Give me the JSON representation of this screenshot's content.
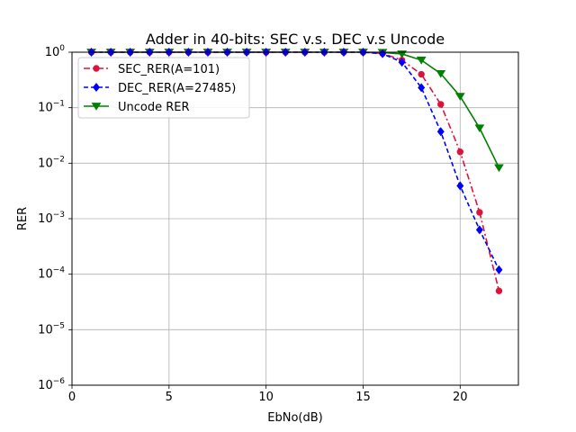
{
  "chart_data": {
    "type": "line",
    "title": "Adder in 40-bits: SEC v.s. DEC v.s Uncode",
    "xlabel": "EbNo(dB)",
    "ylabel": "RER",
    "xlim": [
      0,
      23
    ],
    "ylim": [
      1e-06,
      1
    ],
    "yscale": "log",
    "grid": true,
    "legend_position": "top-left",
    "x_ticks": [
      0,
      5,
      10,
      15,
      20
    ],
    "y_ticks": [
      {
        "value": 1e-06,
        "base": "10",
        "exp": "−6"
      },
      {
        "value": 1e-05,
        "base": "10",
        "exp": "−5"
      },
      {
        "value": 0.0001,
        "base": "10",
        "exp": "−4"
      },
      {
        "value": 0.001,
        "base": "10",
        "exp": "−3"
      },
      {
        "value": 0.01,
        "base": "10",
        "exp": "−2"
      },
      {
        "value": 0.1,
        "base": "10",
        "exp": "−1"
      },
      {
        "value": 1,
        "base": "10",
        "exp": "0"
      }
    ],
    "series": [
      {
        "name": "Uncode RER",
        "color": "#008000",
        "linestyle": "solid",
        "marker": "triangle-down",
        "x": [
          1,
          2,
          3,
          4,
          5,
          6,
          7,
          8,
          9,
          10,
          11,
          12,
          13,
          14,
          15,
          16,
          17,
          18,
          19,
          20,
          21,
          22
        ],
        "y": [
          1,
          1,
          1,
          1,
          1,
          1,
          1,
          1,
          1,
          1,
          1,
          1,
          1,
          1,
          1,
          0.99,
          0.93,
          0.72,
          0.41,
          0.16,
          0.043,
          0.0083
        ]
      },
      {
        "name": "SEC_RER(A=101)",
        "color": "#dc143c",
        "linestyle": "dashdot",
        "marker": "circle",
        "x": [
          1,
          2,
          3,
          4,
          5,
          6,
          7,
          8,
          9,
          10,
          11,
          12,
          13,
          14,
          15,
          16,
          17,
          18,
          19,
          20,
          21,
          22
        ],
        "y": [
          1,
          1,
          1,
          1,
          1,
          1,
          1,
          1,
          1,
          1,
          1,
          1,
          1,
          1,
          1,
          0.95,
          0.72,
          0.4,
          0.115,
          0.016,
          0.0013,
          5e-05
        ]
      },
      {
        "name": "DEC_RER(A=27485)",
        "color": "#0000ff",
        "linestyle": "dashed",
        "marker": "diamond",
        "x": [
          1,
          2,
          3,
          4,
          5,
          6,
          7,
          8,
          9,
          10,
          11,
          12,
          13,
          14,
          15,
          16,
          17,
          18,
          19,
          20,
          21,
          22
        ],
        "y": [
          1,
          1,
          1,
          1,
          1,
          1,
          1,
          1,
          1,
          1,
          1,
          1,
          1,
          1,
          1,
          0.94,
          0.66,
          0.23,
          0.037,
          0.0039,
          0.00063,
          0.00012
        ]
      }
    ],
    "legend_order": [
      "SEC_RER(A=101)",
      "DEC_RER(A=27485)",
      "Uncode RER"
    ]
  }
}
